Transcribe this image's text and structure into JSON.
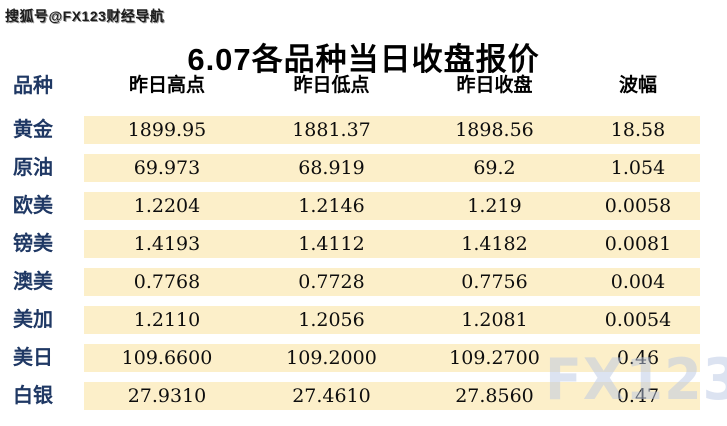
{
  "watermark_top": "搜狐号@FX123财经导航",
  "watermark_bottom": "FX123",
  "title": "6.07各品种当日收盘报价",
  "table": {
    "headers": [
      "品种",
      "昨日高点",
      "昨日低点",
      "昨日收盘",
      "波幅"
    ],
    "rows": [
      {
        "name": "黄金",
        "high": "1899.95",
        "low": "1881.37",
        "close": "1898.56",
        "range": "18.58"
      },
      {
        "name": "原油",
        "high": "69.973",
        "low": "68.919",
        "close": "69.2",
        "range": "1.054"
      },
      {
        "name": "欧美",
        "high": "1.2204",
        "low": "1.2146",
        "close": "1.219",
        "range": "0.0058"
      },
      {
        "name": "镑美",
        "high": "1.4193",
        "low": "1.4112",
        "close": "1.4182",
        "range": "0.0081"
      },
      {
        "name": "澳美",
        "high": "0.7768",
        "low": "0.7728",
        "close": "0.7756",
        "range": "0.004"
      },
      {
        "name": "美加",
        "high": "1.2110",
        "low": "1.2056",
        "close": "1.2081",
        "range": "0.0054"
      },
      {
        "name": "美日",
        "high": "109.6600",
        "low": "109.2000",
        "close": "109.2700",
        "range": "0.46"
      },
      {
        "name": "白银",
        "high": "27.9310",
        "low": "27.4610",
        "close": "27.8560",
        "range": "0.47"
      }
    ]
  },
  "chart_data": {
    "type": "table",
    "title": "6.07各品种当日收盘报价",
    "columns": [
      "品种",
      "昨日高点",
      "昨日低点",
      "昨日收盘",
      "波幅"
    ],
    "rows": [
      [
        "黄金",
        1899.95,
        1881.37,
        1898.56,
        18.58
      ],
      [
        "原油",
        69.973,
        68.919,
        69.2,
        1.054
      ],
      [
        "欧美",
        1.2204,
        1.2146,
        1.219,
        0.0058
      ],
      [
        "镑美",
        1.4193,
        1.4112,
        1.4182,
        0.0081
      ],
      [
        "澳美",
        0.7768,
        0.7728,
        0.7756,
        0.004
      ],
      [
        "美加",
        1.211,
        1.2056,
        1.2081,
        0.0054
      ],
      [
        "美日",
        109.66,
        109.2,
        109.27,
        0.46
      ],
      [
        "白银",
        27.931,
        27.461,
        27.856,
        0.47
      ]
    ]
  },
  "colors": {
    "label_navy": "#1f3864",
    "row_background_cream": "#fcefc9",
    "watermark_blue": "#b9c8e3",
    "title_black": "#000000"
  }
}
